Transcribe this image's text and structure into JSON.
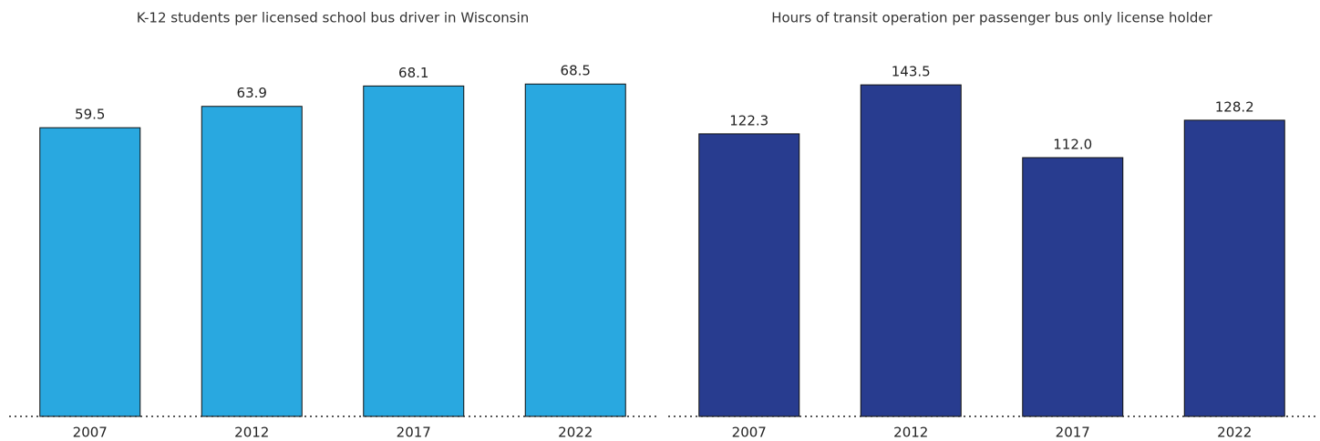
{
  "chart_data": [
    {
      "type": "bar",
      "title": "K-12 students per licensed school bus driver in Wisconsin",
      "categories": [
        "2007",
        "2012",
        "2017",
        "2022"
      ],
      "values": [
        59.5,
        63.9,
        68.1,
        68.5
      ],
      "value_labels": [
        "59.5",
        "63.9",
        "68.1",
        "68.5"
      ],
      "color": "#29a8e0",
      "ylim": [
        0,
        80
      ]
    },
    {
      "type": "bar",
      "title": "Hours of transit operation per passenger bus only license holder",
      "categories": [
        "2007",
        "2012",
        "2017",
        "2022"
      ],
      "values": [
        122.3,
        143.5,
        112.0,
        128.2
      ],
      "value_labels": [
        "122.3",
        "143.5",
        "112.0",
        "128.2"
      ],
      "color": "#283c8f",
      "ylim": [
        0,
        168
      ]
    }
  ]
}
